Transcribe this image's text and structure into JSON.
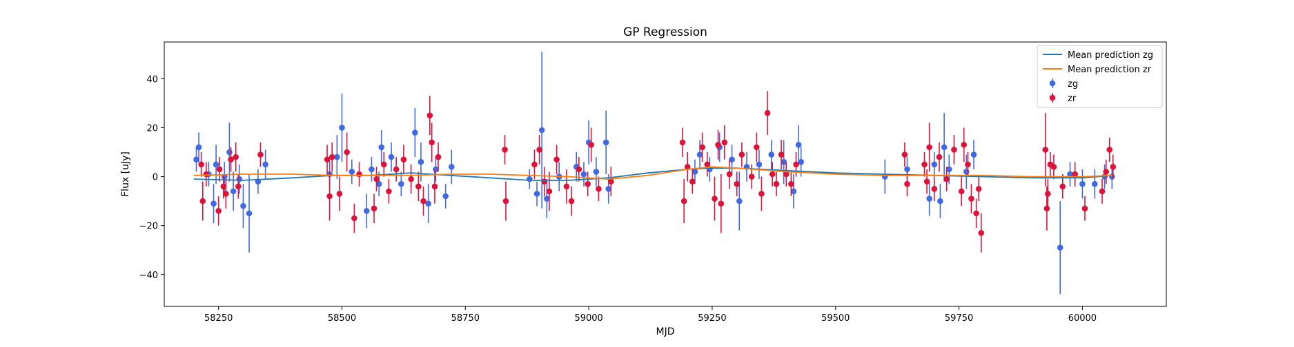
{
  "chart_data": {
    "type": "scatter",
    "title": "GP Regression",
    "xlabel": "MJD",
    "ylabel": "Flux [uJy]",
    "xlim": [
      58140,
      60170
    ],
    "ylim": [
      -53,
      55
    ],
    "xticks": [
      58250,
      58500,
      58750,
      59000,
      59250,
      59500,
      59750,
      60000
    ],
    "yticks": [
      -40,
      -20,
      0,
      20,
      40
    ],
    "grid": false,
    "legend_position": "top-right",
    "legend": [
      {
        "label": "Mean prediction zg",
        "kind": "line",
        "color": "#1f77b4"
      },
      {
        "label": "Mean prediction zr",
        "kind": "line",
        "color": "#ff7f0e"
      },
      {
        "label": "zg",
        "kind": "errorbar",
        "color": "#4169e1"
      },
      {
        "label": "zr",
        "kind": "errorbar",
        "color": "#dc143c"
      }
    ],
    "series": [
      {
        "name": "Mean prediction zg",
        "kind": "line",
        "color": "#1f77b4",
        "x": [
          58200,
          58300,
          58400,
          58480,
          58560,
          58640,
          58720,
          58800,
          58880,
          58960,
          59040,
          59120,
          59200,
          59250,
          59300,
          59400,
          59500,
          59600,
          59700,
          59800,
          59900,
          60000,
          60060
        ],
        "y": [
          -1,
          -1.5,
          -0.5,
          0.5,
          0.5,
          1.5,
          0.5,
          -0.5,
          -1.5,
          -1.5,
          -0.5,
          1.5,
          3,
          3.5,
          3.5,
          2.5,
          1.5,
          1,
          0.5,
          0,
          -0.5,
          -0.5,
          0.5
        ]
      },
      {
        "name": "Mean prediction zr",
        "kind": "line",
        "color": "#ff7f0e",
        "x": [
          58200,
          58300,
          58400,
          58480,
          58560,
          58640,
          58720,
          58800,
          58880,
          58960,
          59040,
          59120,
          59200,
          59250,
          59300,
          59400,
          59500,
          59600,
          59700,
          59800,
          59900,
          60000,
          60060
        ],
        "y": [
          0.5,
          1,
          1,
          0.5,
          0.5,
          0.5,
          1,
          1,
          0.5,
          0,
          -1,
          0.5,
          3,
          4,
          3.5,
          2,
          1,
          0.5,
          0.5,
          0.5,
          0,
          0,
          0.5
        ]
      },
      {
        "name": "zg",
        "kind": "errorbar",
        "color": "#4169e1",
        "points": [
          {
            "x": 58205,
            "y": 7,
            "err": 5
          },
          {
            "x": 58210,
            "y": 12,
            "err": 6
          },
          {
            "x": 58230,
            "y": 1,
            "err": 5
          },
          {
            "x": 58240,
            "y": -11,
            "err": 8
          },
          {
            "x": 58245,
            "y": 5,
            "err": 8
          },
          {
            "x": 58262,
            "y": 0,
            "err": 6
          },
          {
            "x": 58272,
            "y": 10,
            "err": 12
          },
          {
            "x": 58280,
            "y": -6,
            "err": 8
          },
          {
            "x": 58292,
            "y": -1,
            "err": 6
          },
          {
            "x": 58300,
            "y": -12,
            "err": 9
          },
          {
            "x": 58312,
            "y": -15,
            "err": 16
          },
          {
            "x": 58330,
            "y": -2,
            "err": 5
          },
          {
            "x": 58345,
            "y": 5,
            "err": 6
          },
          {
            "x": 58475,
            "y": 1,
            "err": 6
          },
          {
            "x": 58490,
            "y": 8,
            "err": 9
          },
          {
            "x": 58500,
            "y": 20,
            "err": 14
          },
          {
            "x": 58520,
            "y": 2,
            "err": 5
          },
          {
            "x": 58550,
            "y": -14,
            "err": 7
          },
          {
            "x": 58560,
            "y": 3,
            "err": 5
          },
          {
            "x": 58575,
            "y": -3,
            "err": 5
          },
          {
            "x": 58580,
            "y": 12,
            "err": 7
          },
          {
            "x": 58600,
            "y": 8,
            "err": 6
          },
          {
            "x": 58620,
            "y": -3,
            "err": 5
          },
          {
            "x": 58648,
            "y": 18,
            "err": 10
          },
          {
            "x": 58660,
            "y": 6,
            "err": 8
          },
          {
            "x": 58675,
            "y": -11,
            "err": 8
          },
          {
            "x": 58690,
            "y": 3,
            "err": 5
          },
          {
            "x": 58710,
            "y": -8,
            "err": 5
          },
          {
            "x": 58722,
            "y": 4,
            "err": 7
          },
          {
            "x": 58880,
            "y": -1,
            "err": 4
          },
          {
            "x": 58895,
            "y": -7,
            "err": 5
          },
          {
            "x": 58905,
            "y": 19,
            "err": 32
          },
          {
            "x": 58915,
            "y": -9,
            "err": 8
          },
          {
            "x": 58940,
            "y": 0,
            "err": 6
          },
          {
            "x": 58975,
            "y": 4,
            "err": 6
          },
          {
            "x": 58990,
            "y": 1,
            "err": 5
          },
          {
            "x": 59000,
            "y": 14,
            "err": 9
          },
          {
            "x": 59015,
            "y": 2,
            "err": 6
          },
          {
            "x": 59035,
            "y": 14,
            "err": 13
          },
          {
            "x": 59040,
            "y": -5,
            "err": 6
          },
          {
            "x": 59215,
            "y": 2,
            "err": 5
          },
          {
            "x": 59225,
            "y": 9,
            "err": 6
          },
          {
            "x": 59245,
            "y": 3,
            "err": 5
          },
          {
            "x": 59265,
            "y": 12,
            "err": 6
          },
          {
            "x": 59290,
            "y": 7,
            "err": 6
          },
          {
            "x": 59305,
            "y": -10,
            "err": 12
          },
          {
            "x": 59320,
            "y": 4,
            "err": 6
          },
          {
            "x": 59345,
            "y": 5,
            "err": 6
          },
          {
            "x": 59370,
            "y": 9,
            "err": 6
          },
          {
            "x": 59395,
            "y": 6,
            "err": 9
          },
          {
            "x": 59415,
            "y": -6,
            "err": 7
          },
          {
            "x": 59425,
            "y": 13,
            "err": 8
          },
          {
            "x": 59430,
            "y": 6,
            "err": 6
          },
          {
            "x": 59600,
            "y": 0,
            "err": 7
          },
          {
            "x": 59645,
            "y": 3,
            "err": 5
          },
          {
            "x": 59690,
            "y": -9,
            "err": 7
          },
          {
            "x": 59700,
            "y": 5,
            "err": 5
          },
          {
            "x": 59712,
            "y": -10,
            "err": 7
          },
          {
            "x": 59720,
            "y": 12,
            "err": 14
          },
          {
            "x": 59730,
            "y": 3,
            "err": 6
          },
          {
            "x": 59765,
            "y": 2,
            "err": 7
          },
          {
            "x": 59780,
            "y": 9,
            "err": 6
          },
          {
            "x": 59955,
            "y": -29,
            "err": 19
          },
          {
            "x": 59975,
            "y": 1,
            "err": 5
          },
          {
            "x": 60000,
            "y": -3,
            "err": 6
          },
          {
            "x": 60025,
            "y": -3,
            "err": 6
          },
          {
            "x": 60045,
            "y": 0,
            "err": 5
          },
          {
            "x": 60060,
            "y": 0,
            "err": 5
          }
        ]
      },
      {
        "name": "zr",
        "kind": "errorbar",
        "color": "#dc143c",
        "points": [
          {
            "x": 58215,
            "y": 5,
            "err": 5
          },
          {
            "x": 58218,
            "y": -10,
            "err": 8
          },
          {
            "x": 58225,
            "y": 1,
            "err": 5
          },
          {
            "x": 58250,
            "y": -14,
            "err": 6
          },
          {
            "x": 58252,
            "y": 3,
            "err": 5
          },
          {
            "x": 58260,
            "y": -4,
            "err": 5
          },
          {
            "x": 58265,
            "y": -7,
            "err": 6
          },
          {
            "x": 58275,
            "y": 7,
            "err": 5
          },
          {
            "x": 58285,
            "y": 8,
            "err": 6
          },
          {
            "x": 58290,
            "y": -4,
            "err": 5
          },
          {
            "x": 58335,
            "y": 9,
            "err": 5
          },
          {
            "x": 58470,
            "y": 7,
            "err": 6
          },
          {
            "x": 58475,
            "y": -8,
            "err": 10
          },
          {
            "x": 58480,
            "y": 8,
            "err": 6
          },
          {
            "x": 58495,
            "y": -7,
            "err": 7
          },
          {
            "x": 58510,
            "y": 10,
            "err": 8
          },
          {
            "x": 58525,
            "y": -17,
            "err": 6
          },
          {
            "x": 58535,
            "y": 1,
            "err": 5
          },
          {
            "x": 58565,
            "y": -13,
            "err": 6
          },
          {
            "x": 58570,
            "y": -1,
            "err": 5
          },
          {
            "x": 58585,
            "y": 5,
            "err": 5
          },
          {
            "x": 58595,
            "y": -6,
            "err": 5
          },
          {
            "x": 58610,
            "y": 3,
            "err": 5
          },
          {
            "x": 58625,
            "y": 7,
            "err": 6
          },
          {
            "x": 58640,
            "y": -1,
            "err": 6
          },
          {
            "x": 58655,
            "y": -4,
            "err": 6
          },
          {
            "x": 58665,
            "y": -10,
            "err": 6
          },
          {
            "x": 58678,
            "y": 25,
            "err": 8
          },
          {
            "x": 58682,
            "y": 14,
            "err": 8
          },
          {
            "x": 58688,
            "y": -4,
            "err": 7
          },
          {
            "x": 58695,
            "y": 8,
            "err": 6
          },
          {
            "x": 58830,
            "y": 11,
            "err": 6
          },
          {
            "x": 58832,
            "y": -10,
            "err": 8
          },
          {
            "x": 58890,
            "y": 5,
            "err": 6
          },
          {
            "x": 58900,
            "y": 11,
            "err": 6
          },
          {
            "x": 58910,
            "y": -2,
            "err": 6
          },
          {
            "x": 58920,
            "y": -6,
            "err": 8
          },
          {
            "x": 58935,
            "y": 7,
            "err": 6
          },
          {
            "x": 58955,
            "y": -4,
            "err": 7
          },
          {
            "x": 58965,
            "y": -10,
            "err": 6
          },
          {
            "x": 58980,
            "y": 3,
            "err": 5
          },
          {
            "x": 58998,
            "y": -3,
            "err": 5
          },
          {
            "x": 59005,
            "y": 13,
            "err": 7
          },
          {
            "x": 59020,
            "y": -5,
            "err": 5
          },
          {
            "x": 59045,
            "y": -2,
            "err": 6
          },
          {
            "x": 59190,
            "y": 14,
            "err": 6
          },
          {
            "x": 59193,
            "y": -10,
            "err": 9
          },
          {
            "x": 59200,
            "y": 4,
            "err": 6
          },
          {
            "x": 59210,
            "y": -2,
            "err": 5
          },
          {
            "x": 59230,
            "y": 12,
            "err": 6
          },
          {
            "x": 59240,
            "y": 5,
            "err": 5
          },
          {
            "x": 59255,
            "y": -9,
            "err": 9
          },
          {
            "x": 59262,
            "y": 13,
            "err": 6
          },
          {
            "x": 59268,
            "y": -11,
            "err": 12
          },
          {
            "x": 59275,
            "y": 14,
            "err": 7
          },
          {
            "x": 59285,
            "y": 1,
            "err": 6
          },
          {
            "x": 59300,
            "y": -3,
            "err": 5
          },
          {
            "x": 59310,
            "y": 9,
            "err": 5
          },
          {
            "x": 59330,
            "y": 0,
            "err": 5
          },
          {
            "x": 59340,
            "y": 12,
            "err": 6
          },
          {
            "x": 59350,
            "y": -7,
            "err": 7
          },
          {
            "x": 59362,
            "y": 26,
            "err": 9
          },
          {
            "x": 59372,
            "y": 1,
            "err": 5
          },
          {
            "x": 59380,
            "y": -3,
            "err": 5
          },
          {
            "x": 59390,
            "y": 9,
            "err": 6
          },
          {
            "x": 59400,
            "y": 1,
            "err": 5
          },
          {
            "x": 59410,
            "y": -3,
            "err": 5
          },
          {
            "x": 59420,
            "y": 5,
            "err": 5
          },
          {
            "x": 59640,
            "y": 9,
            "err": 5
          },
          {
            "x": 59645,
            "y": -3,
            "err": 5
          },
          {
            "x": 59680,
            "y": 5,
            "err": 5
          },
          {
            "x": 59685,
            "y": -2,
            "err": 5
          },
          {
            "x": 59690,
            "y": 12,
            "err": 10
          },
          {
            "x": 59700,
            "y": -5,
            "err": 5
          },
          {
            "x": 59710,
            "y": 8,
            "err": 6
          },
          {
            "x": 59725,
            "y": -1,
            "err": 5
          },
          {
            "x": 59740,
            "y": 11,
            "err": 6
          },
          {
            "x": 59755,
            "y": -6,
            "err": 6
          },
          {
            "x": 59760,
            "y": 13,
            "err": 7
          },
          {
            "x": 59768,
            "y": 5,
            "err": 5
          },
          {
            "x": 59775,
            "y": -9,
            "err": 6
          },
          {
            "x": 59785,
            "y": -15,
            "err": 6
          },
          {
            "x": 59790,
            "y": -5,
            "err": 5
          },
          {
            "x": 59795,
            "y": -23,
            "err": 8
          },
          {
            "x": 59925,
            "y": 11,
            "err": 15
          },
          {
            "x": 59928,
            "y": -13,
            "err": 9
          },
          {
            "x": 59930,
            "y": -7,
            "err": 6
          },
          {
            "x": 59935,
            "y": 5,
            "err": 5
          },
          {
            "x": 59942,
            "y": 4,
            "err": 5
          },
          {
            "x": 59960,
            "y": -4,
            "err": 5
          },
          {
            "x": 59985,
            "y": 1,
            "err": 5
          },
          {
            "x": 60005,
            "y": -13,
            "err": 5
          },
          {
            "x": 60040,
            "y": -6,
            "err": 5
          },
          {
            "x": 60048,
            "y": 2,
            "err": 5
          },
          {
            "x": 60055,
            "y": 11,
            "err": 5
          },
          {
            "x": 60062,
            "y": 4,
            "err": 5
          }
        ]
      }
    ]
  }
}
